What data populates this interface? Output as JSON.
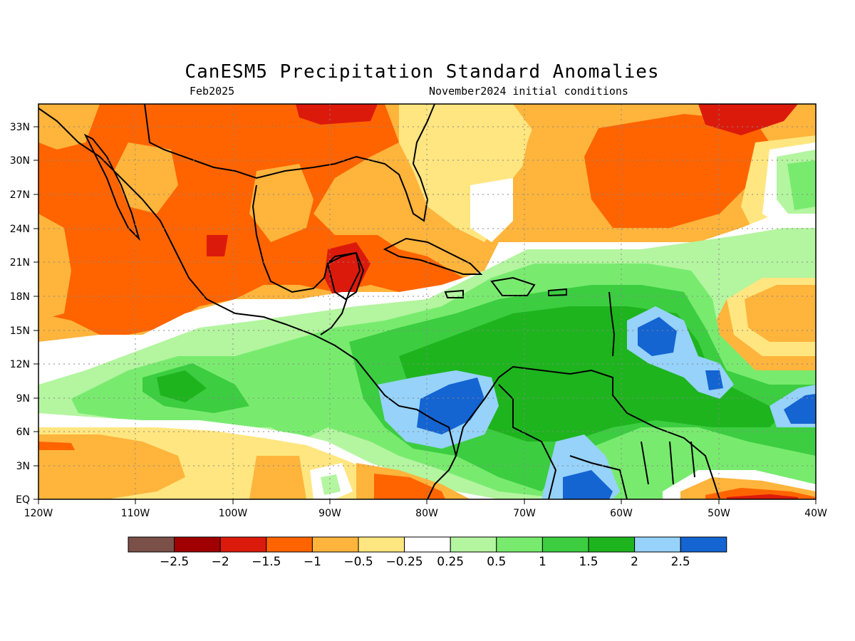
{
  "title": "CanESM5 Precipitation Standard Anomalies",
  "subtitle_left": "Feb2025",
  "subtitle_right": "November2024 initial conditions",
  "map": {
    "region": "Caribbean / Gulf of Mexico / Central America",
    "lon_range": [
      -120,
      -40
    ],
    "lat_range": [
      0,
      35
    ],
    "lon_ticks": [
      "120W",
      "110W",
      "100W",
      "90W",
      "80W",
      "70W",
      "60W",
      "50W",
      "40W"
    ],
    "lat_ticks": [
      "EQ",
      "3N",
      "6N",
      "9N",
      "12N",
      "15N",
      "18N",
      "21N",
      "24N",
      "27N",
      "30N",
      "33N"
    ],
    "grid": "dotted"
  },
  "colorbar": {
    "colors": [
      "#7a5048",
      "#a00000",
      "#dc1a0c",
      "#ff6400",
      "#ffb43c",
      "#ffe680",
      "#ffffff",
      "#b4f5a0",
      "#78eb6e",
      "#3ccd41",
      "#1eb41e",
      "#96d2fa",
      "#1464d2"
    ],
    "labels": [
      "-2.5",
      "-2",
      "-1.5",
      "-1",
      "-0.5",
      "-0.25",
      "0.25",
      "0.5",
      "1",
      "1.5",
      "2",
      "2.5"
    ]
  }
}
